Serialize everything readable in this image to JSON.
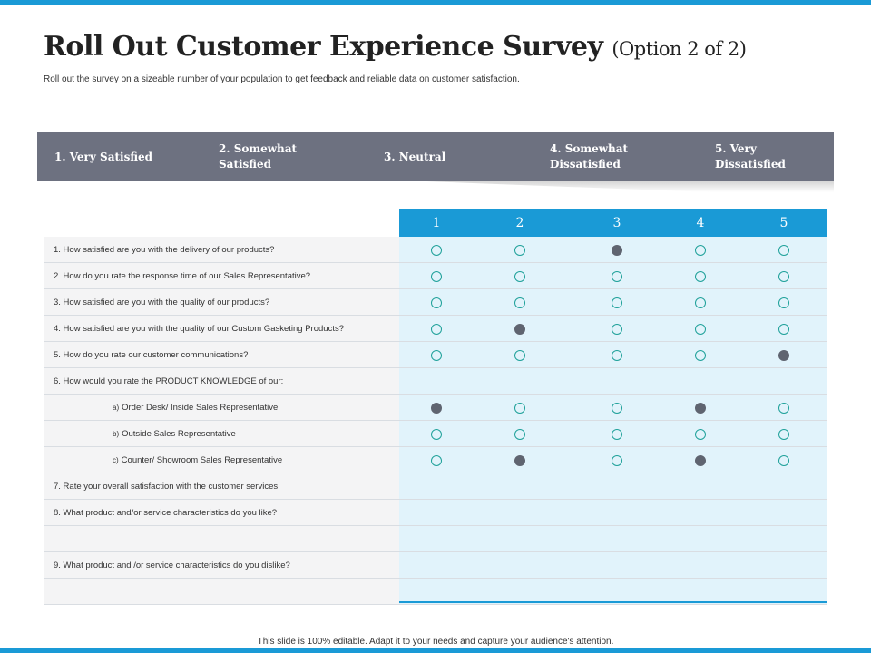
{
  "title": "Roll Out Customer Experience Survey",
  "title_option": "(Option 2 of  2)",
  "description": "Roll out the survey on a sizeable number of your population to get feedback and reliable data on customer satisfaction.",
  "scale": [
    "1. Very Satisfied",
    "2. Somewhat Satisfied",
    "3. Neutral",
    "4. Somewhat Dissatisfied",
    "5. Very Dissatisfied"
  ],
  "columns": [
    "1",
    "2",
    "3",
    "4",
    "5"
  ],
  "rows": [
    {
      "text": "1. How satisfied are you with the delivery of our products?",
      "marks": [
        0,
        0,
        1,
        0,
        0
      ]
    },
    {
      "text": "2. How do you rate the response time of our Sales Representative?",
      "marks": [
        0,
        0,
        0,
        0,
        0
      ]
    },
    {
      "text": "3. How satisfied are you with the quality of our products?",
      "marks": [
        0,
        0,
        0,
        0,
        0
      ]
    },
    {
      "text": "4. How satisfied are you with the quality of our Custom Gasketing Products?",
      "marks": [
        0,
        1,
        0,
        0,
        0
      ]
    },
    {
      "text": "5. How do you rate our customer communications?",
      "marks": [
        0,
        0,
        0,
        0,
        1
      ]
    },
    {
      "text": "6. How would you rate the PRODUCT  KNOWLEDGE   of our:",
      "marks": null
    },
    {
      "prefix": "a)",
      "text": "Order Desk/ Inside Sales Representative",
      "marks": [
        1,
        0,
        0,
        1,
        0
      ]
    },
    {
      "prefix": "b)",
      "text": "Outside Sales Representative",
      "marks": [
        0,
        0,
        0,
        0,
        0
      ]
    },
    {
      "prefix": "c)",
      "text": "Counter/ Showroom Sales Representative",
      "marks": [
        0,
        1,
        0,
        1,
        0
      ]
    },
    {
      "text": "7. Rate your overall satisfaction with the customer services.",
      "marks": null
    },
    {
      "text": "8. What product and/or service characteristics do you like?",
      "marks": null
    },
    {
      "text": "",
      "marks": null
    },
    {
      "text": "9. What product and /or service characteristics do you dislike?",
      "marks": null
    },
    {
      "text": "",
      "marks": null
    }
  ],
  "footer": "This slide is 100% editable. Adapt it to your needs and capture your audience's attention.",
  "colors": {
    "accent_blue": "#1a9ad6",
    "scale_bar": "#6d7180",
    "answer_bg": "#e1f3fb",
    "question_bg": "#f4f4f5",
    "empty_dot": "#1fa19a",
    "filled_dot": "#5f6470"
  }
}
